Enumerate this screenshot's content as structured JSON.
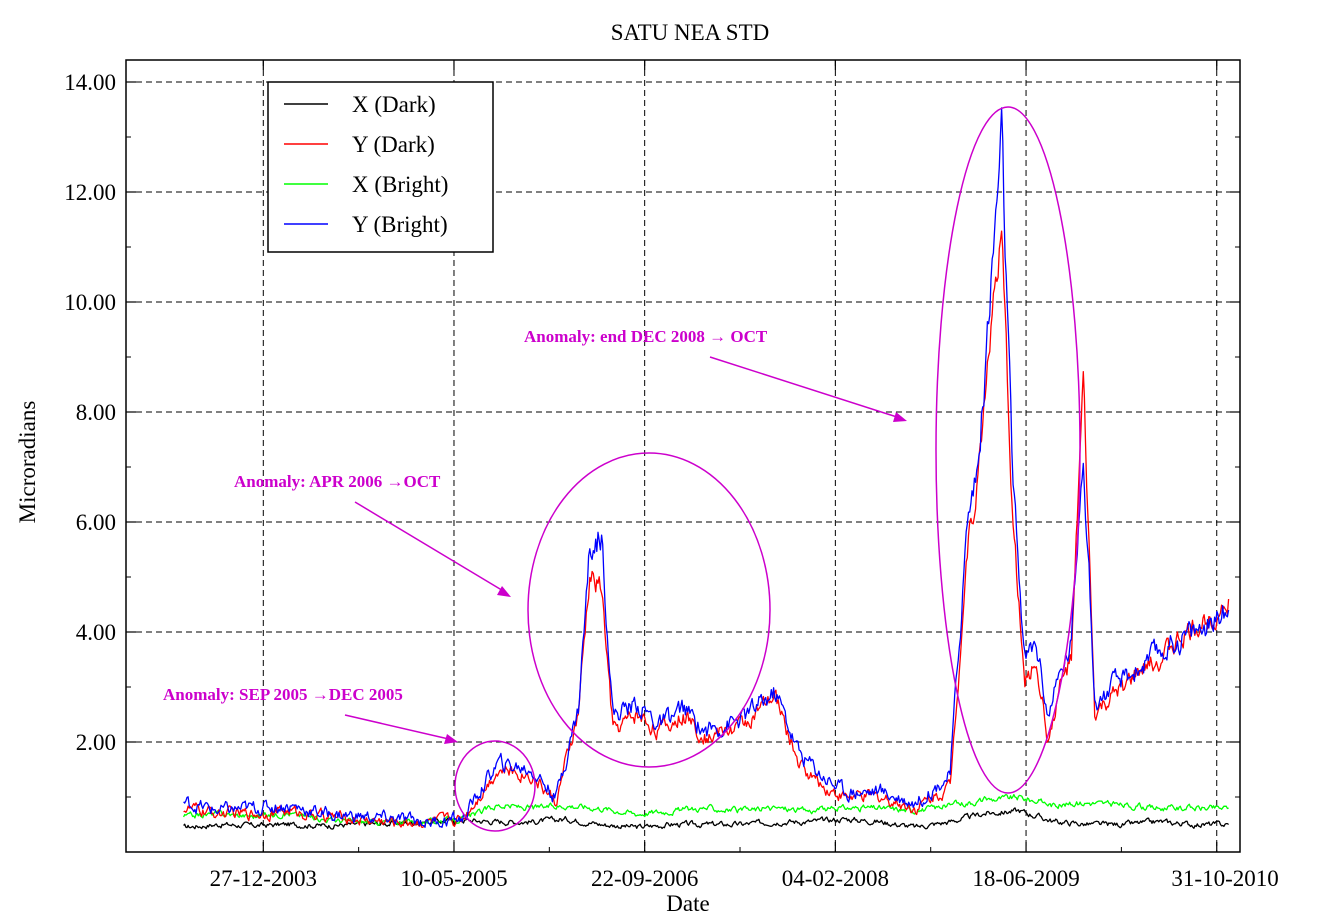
{
  "chart_data": {
    "type": "line",
    "title": "SATU NEA STD",
    "xlabel": "Date",
    "ylabel": "Microradians",
    "x_tick_labels": [
      "27-12-2003",
      "10-05-2005",
      "22-09-2006",
      "04-02-2008",
      "18-06-2009",
      "31-10-2010"
    ],
    "x_range": [
      "2003-01-01",
      "2010-12-31"
    ],
    "y_tick_labels": [
      "2.00",
      "4.00",
      "6.00",
      "8.00",
      "10.00",
      "12.00",
      "14.00"
    ],
    "ylim": [
      0,
      14.4
    ],
    "grid": true,
    "legend_position": "top-left",
    "series": [
      {
        "name": "X (Dark)",
        "color": "#000000",
        "points": [
          [
            "2003-06-01",
            0.45
          ],
          [
            "2003-09-01",
            0.5
          ],
          [
            "2003-12-01",
            0.48
          ],
          [
            "2004-03-01",
            0.5
          ],
          [
            "2004-06-01",
            0.48
          ],
          [
            "2004-09-01",
            0.5
          ],
          [
            "2004-12-01",
            0.52
          ],
          [
            "2005-03-01",
            0.55
          ],
          [
            "2005-06-01",
            0.58
          ],
          [
            "2005-09-01",
            0.55
          ],
          [
            "2005-12-01",
            0.55
          ],
          [
            "2006-03-01",
            0.6
          ],
          [
            "2006-06-01",
            0.5
          ],
          [
            "2006-09-01",
            0.45
          ],
          [
            "2006-12-01",
            0.5
          ],
          [
            "2007-03-01",
            0.5
          ],
          [
            "2007-06-01",
            0.5
          ],
          [
            "2007-09-01",
            0.55
          ],
          [
            "2007-12-01",
            0.55
          ],
          [
            "2008-03-01",
            0.6
          ],
          [
            "2008-06-01",
            0.55
          ],
          [
            "2008-09-01",
            0.45
          ],
          [
            "2008-12-01",
            0.55
          ],
          [
            "2009-03-01",
            0.7
          ],
          [
            "2009-06-01",
            0.75
          ],
          [
            "2009-09-01",
            0.55
          ],
          [
            "2009-12-01",
            0.5
          ],
          [
            "2010-03-01",
            0.5
          ],
          [
            "2010-06-01",
            0.55
          ],
          [
            "2010-09-01",
            0.5
          ],
          [
            "2010-12-01",
            0.5
          ]
        ]
      },
      {
        "name": "Y (Dark)",
        "color": "#ff0000",
        "points": [
          [
            "2003-06-01",
            0.8
          ],
          [
            "2003-09-01",
            0.7
          ],
          [
            "2003-12-01",
            0.7
          ],
          [
            "2004-03-01",
            0.75
          ],
          [
            "2004-06-01",
            0.65
          ],
          [
            "2004-09-01",
            0.6
          ],
          [
            "2004-12-01",
            0.55
          ],
          [
            "2005-03-01",
            0.55
          ],
          [
            "2005-06-01",
            0.6
          ],
          [
            "2005-09-01",
            1.5
          ],
          [
            "2005-12-01",
            1.4
          ],
          [
            "2006-02-01",
            0.9
          ],
          [
            "2006-04-01",
            2.5
          ],
          [
            "2006-05-01",
            5.0
          ],
          [
            "2006-06-01",
            4.8
          ],
          [
            "2006-07-01",
            2.2
          ],
          [
            "2006-09-01",
            2.5
          ],
          [
            "2006-11-01",
            2.2
          ],
          [
            "2007-01-01",
            2.5
          ],
          [
            "2007-03-01",
            2.1
          ],
          [
            "2007-06-01",
            2.3
          ],
          [
            "2007-09-01",
            2.8
          ],
          [
            "2007-11-01",
            1.6
          ],
          [
            "2008-01-01",
            1.2
          ],
          [
            "2008-03-01",
            1.0
          ],
          [
            "2008-06-01",
            1.0
          ],
          [
            "2008-09-01",
            0.8
          ],
          [
            "2008-12-01",
            1.2
          ],
          [
            "2009-01-15",
            5.5
          ],
          [
            "2009-02-15",
            7.0
          ],
          [
            "2009-03-15",
            9.5
          ],
          [
            "2009-04-15",
            11.0
          ],
          [
            "2009-05-15",
            6.0
          ],
          [
            "2009-06-15",
            3.0
          ],
          [
            "2009-07-15",
            3.5
          ],
          [
            "2009-08-15",
            2.0
          ],
          [
            "2009-09-15",
            3.0
          ],
          [
            "2009-10-15",
            3.5
          ],
          [
            "2009-11-15",
            8.5
          ],
          [
            "2009-12-15",
            2.5
          ],
          [
            "2010-02-01",
            2.8
          ],
          [
            "2010-04-01",
            3.2
          ],
          [
            "2010-06-01",
            3.5
          ],
          [
            "2010-08-01",
            3.9
          ],
          [
            "2010-10-01",
            4.2
          ],
          [
            "2010-12-01",
            4.6
          ]
        ]
      },
      {
        "name": "X (Bright)",
        "color": "#00ff00",
        "points": [
          [
            "2003-06-01",
            0.65
          ],
          [
            "2003-09-01",
            0.7
          ],
          [
            "2003-12-01",
            0.65
          ],
          [
            "2004-03-01",
            0.7
          ],
          [
            "2004-06-01",
            0.6
          ],
          [
            "2004-09-01",
            0.55
          ],
          [
            "2004-12-01",
            0.55
          ],
          [
            "2005-03-01",
            0.55
          ],
          [
            "2005-06-01",
            0.6
          ],
          [
            "2005-09-01",
            0.85
          ],
          [
            "2005-12-01",
            0.8
          ],
          [
            "2006-03-01",
            0.85
          ],
          [
            "2006-06-01",
            0.8
          ],
          [
            "2006-09-01",
            0.7
          ],
          [
            "2006-12-01",
            0.75
          ],
          [
            "2007-03-01",
            0.8
          ],
          [
            "2007-06-01",
            0.75
          ],
          [
            "2007-09-01",
            0.8
          ],
          [
            "2007-12-01",
            0.75
          ],
          [
            "2008-03-01",
            0.8
          ],
          [
            "2008-06-01",
            0.8
          ],
          [
            "2008-09-01",
            0.75
          ],
          [
            "2008-12-01",
            0.85
          ],
          [
            "2009-03-01",
            0.95
          ],
          [
            "2009-06-01",
            1.0
          ],
          [
            "2009-09-01",
            0.85
          ],
          [
            "2009-12-01",
            0.9
          ],
          [
            "2010-03-01",
            0.85
          ],
          [
            "2010-06-01",
            0.8
          ],
          [
            "2010-09-01",
            0.8
          ],
          [
            "2010-12-01",
            0.8
          ]
        ]
      },
      {
        "name": "Y (Bright)",
        "color": "#0000ff",
        "points": [
          [
            "2003-06-01",
            0.9
          ],
          [
            "2003-09-01",
            0.75
          ],
          [
            "2003-12-01",
            0.8
          ],
          [
            "2004-03-01",
            0.85
          ],
          [
            "2004-06-01",
            0.7
          ],
          [
            "2004-09-01",
            0.65
          ],
          [
            "2004-12-01",
            0.6
          ],
          [
            "2005-03-01",
            0.55
          ],
          [
            "2005-06-01",
            0.6
          ],
          [
            "2005-09-01",
            1.6
          ],
          [
            "2005-12-01",
            1.5
          ],
          [
            "2006-02-01",
            1.0
          ],
          [
            "2006-04-01",
            2.6
          ],
          [
            "2006-05-01",
            5.5
          ],
          [
            "2006-06-01",
            5.8
          ],
          [
            "2006-07-01",
            2.5
          ],
          [
            "2006-09-01",
            2.7
          ],
          [
            "2006-11-01",
            2.3
          ],
          [
            "2007-01-01",
            2.6
          ],
          [
            "2007-03-01",
            2.2
          ],
          [
            "2007-06-01",
            2.4
          ],
          [
            "2007-09-01",
            2.9
          ],
          [
            "2007-11-01",
            1.8
          ],
          [
            "2008-01-01",
            1.4
          ],
          [
            "2008-03-01",
            1.1
          ],
          [
            "2008-06-01",
            1.1
          ],
          [
            "2008-09-01",
            0.9
          ],
          [
            "2008-12-01",
            1.4
          ],
          [
            "2009-01-15",
            6.0
          ],
          [
            "2009-02-15",
            7.2
          ],
          [
            "2009-03-15",
            10.0
          ],
          [
            "2009-04-15",
            13.0
          ],
          [
            "2009-05-15",
            6.5
          ],
          [
            "2009-06-15",
            3.5
          ],
          [
            "2009-07-15",
            3.8
          ],
          [
            "2009-08-15",
            2.5
          ],
          [
            "2009-09-15",
            3.2
          ],
          [
            "2009-10-15",
            3.8
          ],
          [
            "2009-11-15",
            7.5
          ],
          [
            "2009-12-15",
            2.7
          ],
          [
            "2010-02-01",
            3.0
          ],
          [
            "2010-04-01",
            3.3
          ],
          [
            "2010-06-01",
            3.6
          ],
          [
            "2010-08-01",
            3.9
          ],
          [
            "2010-10-01",
            4.1
          ],
          [
            "2010-12-01",
            4.4
          ]
        ]
      }
    ],
    "annotations": [
      {
        "text": "Anomaly: SEP 2005 →DEC 2005",
        "color": "#cc00cc"
      },
      {
        "text": "Anomaly: APR 2006 →OCT",
        "color": "#cc00cc"
      },
      {
        "text": "Anomaly: end DEC 2008 → OCT",
        "color": "#cc00cc"
      }
    ]
  }
}
